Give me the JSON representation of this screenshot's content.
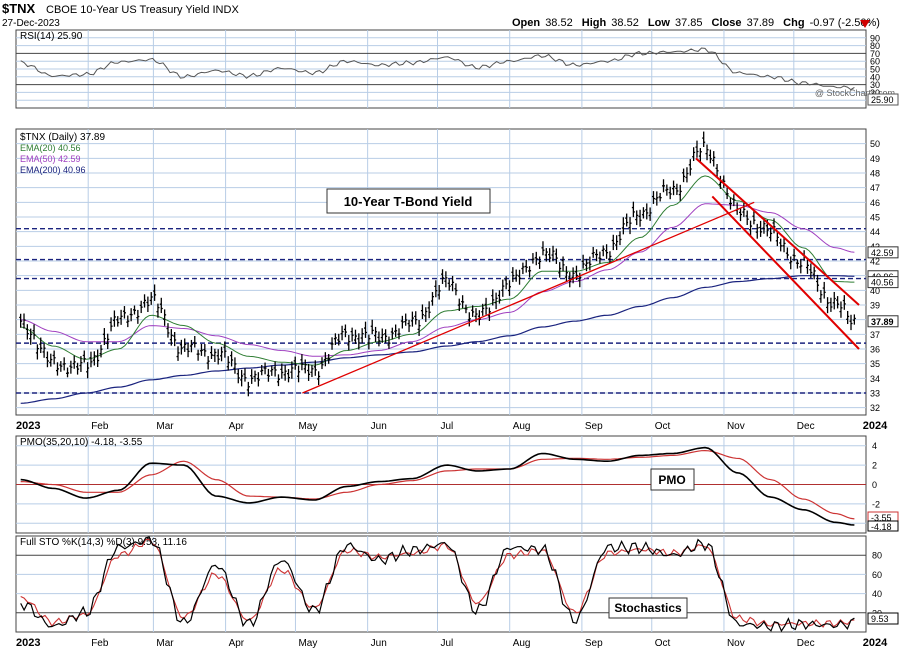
{
  "header": {
    "symbol": "$TNX",
    "name": "CBOE 10-Year US Treasury Yield INDX",
    "date": "27-Dec-2023",
    "open_label": "Open",
    "open": "38.52",
    "high_label": "High",
    "high": "38.52",
    "low_label": "Low",
    "low": "37.85",
    "close_label": "Close",
    "close": "37.89",
    "chg_label": "Chg",
    "chg": "-0.97 (-2.50%)",
    "watermark": "@ StockCharts.com"
  },
  "colors": {
    "price": "#000000",
    "ema20": "#2e7d32",
    "ema50": "#a040c0",
    "ema200": "#1a237e",
    "trend": "#e00000",
    "rsi": "#555555",
    "pmo": "#000000",
    "pmo_signal": "#cc3333",
    "stoK": "#000000",
    "stoD": "#cc3333",
    "grid": "#b8cde6"
  },
  "panels": {
    "rsi": {
      "label": "RSI(14) 25.90",
      "ticks": [
        "90",
        "80",
        "70",
        "60",
        "50",
        "40",
        "30",
        "20",
        "10"
      ],
      "last_tag": "25.90"
    },
    "price": {
      "legend": [
        {
          "text": "$TNX (Daily) 37.89",
          "color": "#000000"
        },
        {
          "text": "EMA(20) 40.56",
          "color": "#2e7d32"
        },
        {
          "text": "EMA(50) 42.59",
          "color": "#a040c0"
        },
        {
          "text": "EMA(200) 40.96",
          "color": "#1a237e"
        }
      ],
      "annotation": "10-Year T-Bond Yield",
      "ticks": [
        "50",
        "49",
        "48",
        "47",
        "46",
        "45",
        "44",
        "43",
        "42",
        "41",
        "40",
        "39",
        "38",
        "37",
        "36",
        "35",
        "34",
        "33",
        "32"
      ],
      "tags": [
        {
          "text": "42.59",
          "value": 42.59
        },
        {
          "text": "40.96",
          "value": 40.96
        },
        {
          "text": "40.56",
          "value": 40.56
        },
        {
          "text": "37.89",
          "value": 37.89,
          "bold": true
        }
      ]
    },
    "pmo": {
      "label": "PMO(35,20,10) -4.18, -3.55",
      "annotation": "PMO",
      "ticks": [
        "4",
        "2",
        "0",
        "-2",
        "-4"
      ],
      "tags": [
        "-3.55",
        "-4.18"
      ]
    },
    "sto": {
      "label": "Full STO %K(14,3) %D(3) 9.53, 11.16",
      "annotation": "Stochastics",
      "ticks": [
        "80",
        "60",
        "40",
        "20"
      ],
      "tag": "9.53"
    }
  },
  "x_axis": {
    "months": [
      "2023",
      "Feb",
      "Mar",
      "Apr",
      "May",
      "Jun",
      "Jul",
      "Aug",
      "Sep",
      "Oct",
      "Nov",
      "Dec",
      "2024"
    ]
  },
  "chart_data": {
    "type": "line",
    "title": "$TNX CBOE 10-Year US Treasury Yield INDX",
    "x_type": "date",
    "x": [
      "2023-01-03",
      "2023-01-17",
      "2023-01-31",
      "2023-02-14",
      "2023-02-28",
      "2023-03-14",
      "2023-03-28",
      "2023-04-11",
      "2023-04-25",
      "2023-05-09",
      "2023-05-23",
      "2023-06-06",
      "2023-06-20",
      "2023-07-05",
      "2023-07-18",
      "2023-08-01",
      "2023-08-15",
      "2023-08-29",
      "2023-09-12",
      "2023-09-26",
      "2023-10-10",
      "2023-10-24",
      "2023-11-07",
      "2023-11-21",
      "2023-12-05",
      "2023-12-19",
      "2023-12-27"
    ],
    "series": [
      {
        "name": "$TNX (Daily)",
        "values": [
          37.9,
          35.0,
          34.8,
          37.9,
          39.3,
          36.0,
          35.7,
          34.0,
          34.5,
          34.6,
          37.0,
          36.8,
          37.7,
          40.5,
          38.1,
          40.5,
          42.5,
          41.1,
          42.8,
          45.3,
          46.9,
          49.7,
          45.4,
          43.9,
          41.7,
          39.0,
          37.9
        ]
      },
      {
        "name": "EMA(20)",
        "values": [
          37.5,
          36.2,
          35.3,
          36.0,
          38.3,
          37.6,
          36.4,
          35.5,
          35.1,
          34.9,
          35.9,
          36.5,
          37.0,
          38.6,
          38.9,
          39.4,
          41.3,
          41.3,
          41.9,
          43.6,
          45.8,
          47.8,
          46.1,
          44.8,
          42.9,
          40.6,
          40.56
        ]
      },
      {
        "name": "EMA(50)",
        "values": [
          38.0,
          37.2,
          36.5,
          36.5,
          37.6,
          37.4,
          36.9,
          36.3,
          35.9,
          35.5,
          35.6,
          35.9,
          36.5,
          37.5,
          38.0,
          38.5,
          39.9,
          40.6,
          41.4,
          42.6,
          44.3,
          45.9,
          45.8,
          45.3,
          44.2,
          42.9,
          42.59
        ]
      },
      {
        "name": "EMA(200)",
        "values": [
          32.3,
          32.6,
          33.0,
          33.4,
          33.9,
          34.2,
          34.5,
          34.7,
          34.9,
          35.1,
          35.4,
          35.6,
          35.8,
          36.2,
          36.5,
          36.9,
          37.5,
          37.9,
          38.3,
          38.9,
          39.5,
          40.2,
          40.6,
          40.8,
          41.0,
          41.0,
          40.96
        ]
      }
    ],
    "rsi": {
      "name": "RSI(14)",
      "values": [
        58,
        41,
        43,
        59,
        62,
        40,
        48,
        41,
        51,
        45,
        60,
        55,
        58,
        65,
        52,
        60,
        67,
        55,
        60,
        70,
        72,
        75,
        45,
        40,
        32,
        27,
        25.9
      ]
    },
    "pmo": {
      "name": "PMO(35,20,10)",
      "values": [
        0.5,
        -0.4,
        -1.4,
        -0.6,
        2.2,
        2.0,
        -1.2,
        -1.9,
        -1.3,
        -1.6,
        -0.2,
        0.3,
        0.6,
        2.0,
        1.4,
        1.6,
        3.2,
        2.6,
        2.4,
        3.0,
        3.2,
        3.8,
        1.2,
        -1.3,
        -2.6,
        -3.9,
        -4.18
      ]
    },
    "pmo_signal": {
      "name": "PMO signal",
      "values": [
        0.3,
        0.0,
        -0.8,
        -0.8,
        1.0,
        2.4,
        0.5,
        -1.2,
        -1.3,
        -1.5,
        -0.8,
        0.0,
        0.4,
        1.4,
        1.6,
        1.6,
        2.6,
        2.7,
        2.6,
        2.8,
        3.0,
        3.5,
        2.7,
        0.5,
        -1.5,
        -3.0,
        -3.55
      ]
    },
    "sto_k": {
      "name": "%K(14,3)",
      "values": [
        30,
        6,
        20,
        88,
        96,
        9,
        70,
        8,
        75,
        22,
        90,
        75,
        85,
        92,
        22,
        88,
        86,
        12,
        88,
        88,
        80,
        92,
        8,
        6,
        8,
        7,
        9.53
      ]
    },
    "sto_d": {
      "name": "%D(3)",
      "values": [
        36,
        10,
        18,
        80,
        95,
        15,
        60,
        12,
        65,
        25,
        85,
        78,
        82,
        90,
        30,
        80,
        85,
        20,
        82,
        86,
        82,
        90,
        14,
        8,
        9,
        9,
        11.16
      ]
    },
    "trend_lines": [
      {
        "x": [
          "2023-05-04",
          "2023-11-14"
        ],
        "y": [
          33.0,
          46.0
        ]
      },
      {
        "x": [
          "2023-10-20",
          "2023-12-29"
        ],
        "y": [
          49.0,
          39.0
        ]
      },
      {
        "x": [
          "2023-10-27",
          "2023-12-29"
        ],
        "y": [
          46.4,
          36.0
        ]
      }
    ],
    "horizontal_lines": [
      44.2,
      42.1,
      40.8,
      36.4,
      33.0
    ],
    "ylim": {
      "price": [
        31.5,
        51
      ],
      "rsi": [
        0,
        100
      ],
      "pmo": [
        -5,
        5
      ],
      "sto": [
        0,
        100
      ]
    },
    "grid": true,
    "legend": "top-left"
  }
}
